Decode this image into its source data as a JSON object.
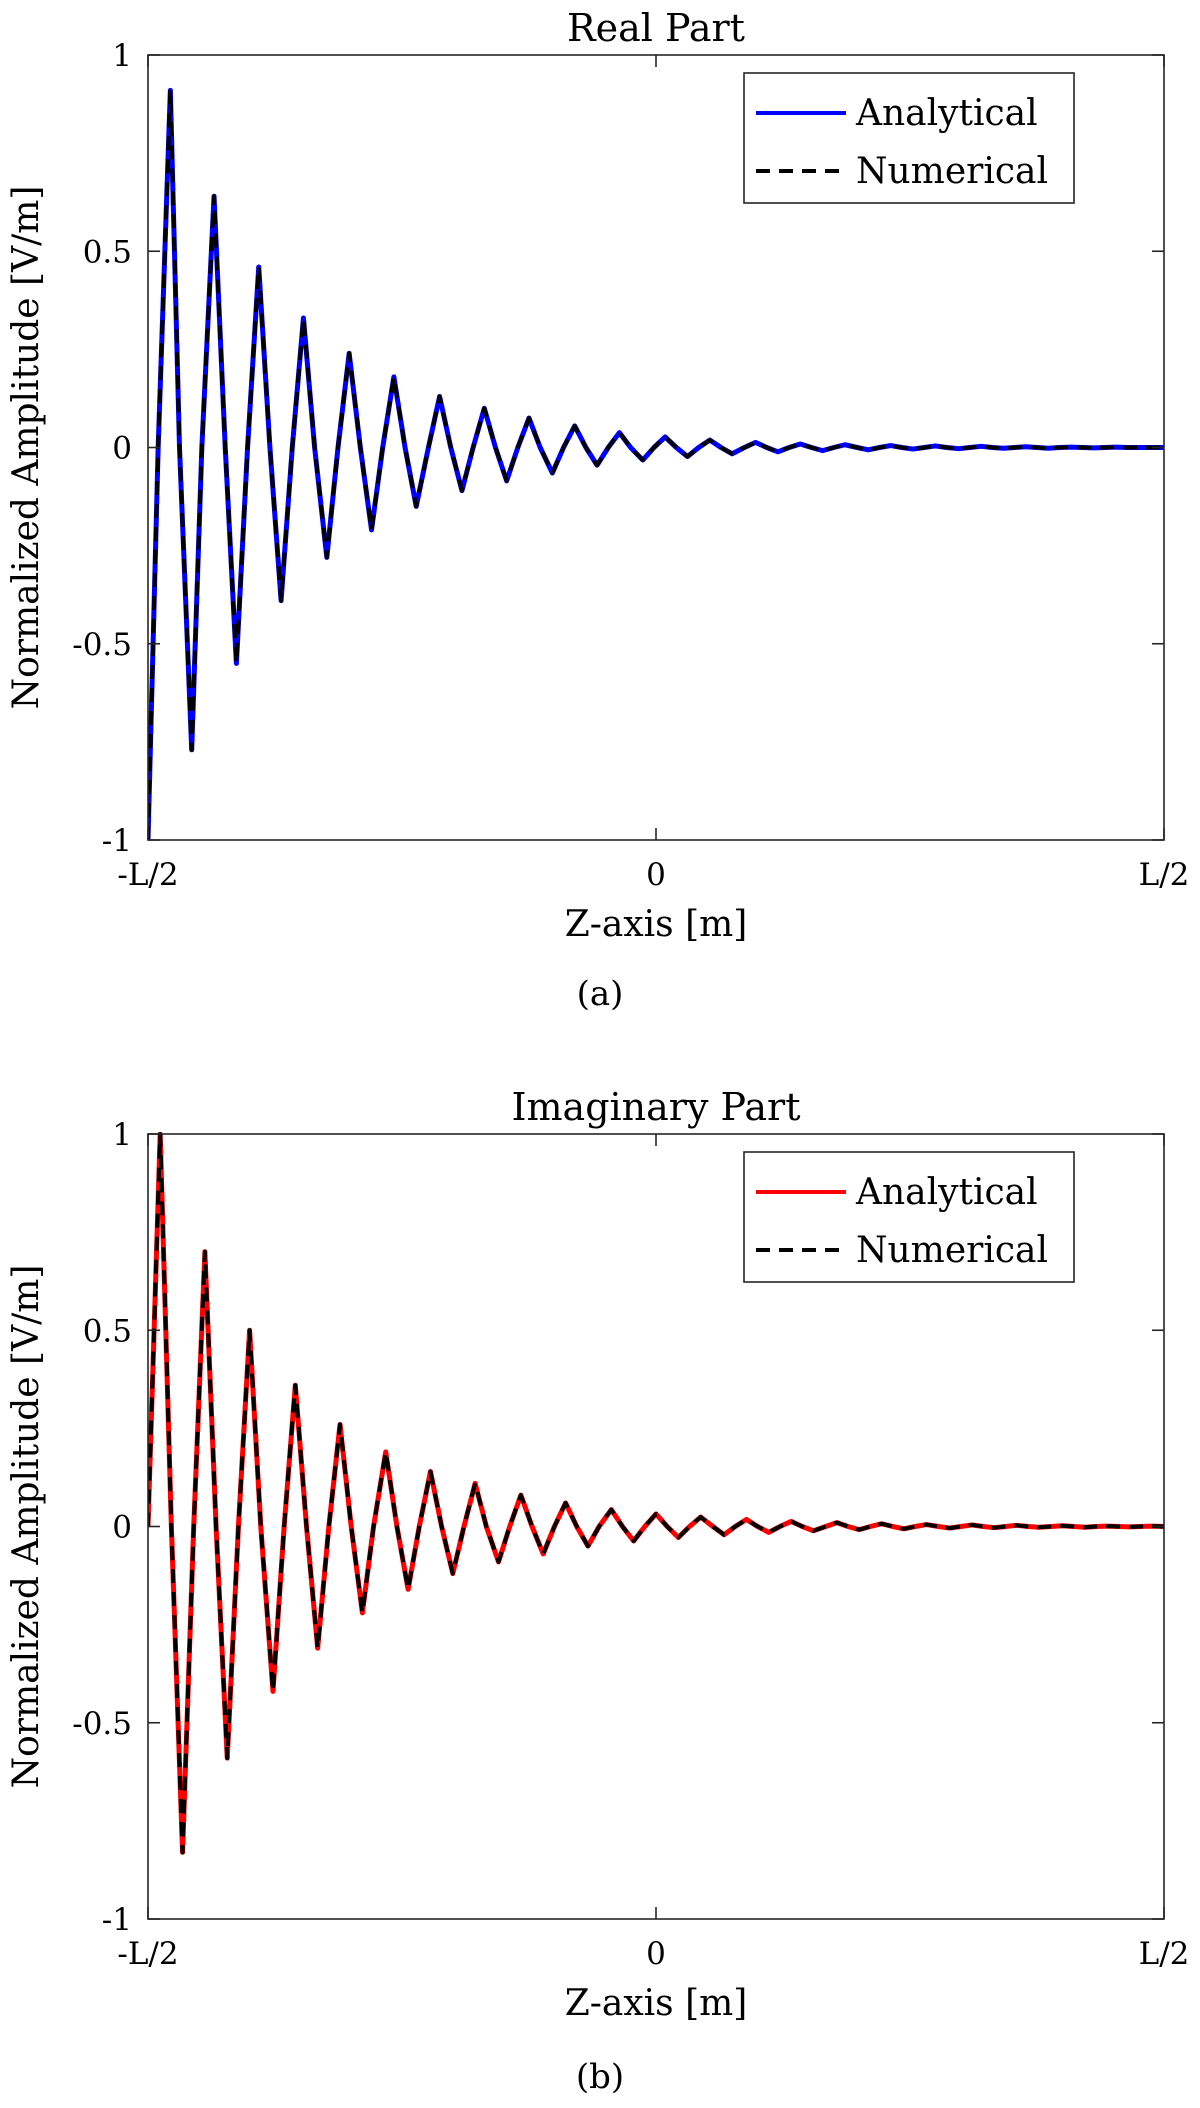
{
  "figure": {
    "panels": [
      {
        "caption": "(a)"
      },
      {
        "caption": "(b)"
      }
    ]
  },
  "chart_data": [
    {
      "type": "line",
      "title": "Real Part",
      "xlabel": "Z-axis [m]",
      "ylabel": "Normalized Amplitude [V/m]",
      "xlim": [
        -0.5,
        0.5
      ],
      "ylim": [
        -1,
        1
      ],
      "x_ticks": [
        -0.5,
        0,
        0.5
      ],
      "x_tick_labels": [
        "-L/2",
        "0",
        "L/2"
      ],
      "y_ticks": [
        1,
        0.5,
        0,
        -0.5,
        -1
      ],
      "y_tick_labels": [
        "1",
        "0.5",
        "0",
        "-0.5",
        "-1"
      ],
      "grid": false,
      "legend_position": "top-right",
      "colors": {
        "Analytical": "#0000ff",
        "Numerical": "#000000"
      },
      "series": [
        {
          "name": "Analytical",
          "style": "solid",
          "x": [
            -0.5,
            -0.49,
            -0.478,
            -0.469,
            -0.457,
            -0.447,
            -0.435,
            -0.424,
            -0.413,
            -0.402,
            -0.391,
            -0.38,
            -0.369,
            -0.358,
            -0.347,
            -0.336,
            -0.324,
            -0.313,
            -0.302,
            -0.291,
            -0.28,
            -0.269,
            -0.258,
            -0.247,
            -0.236,
            -0.224,
            -0.213,
            -0.202,
            -0.191,
            -0.18,
            -0.169,
            -0.158,
            -0.147,
            -0.136,
            -0.125,
            -0.114,
            -0.102,
            -0.091,
            -0.08,
            -0.069,
            -0.058,
            -0.047,
            -0.036,
            -0.025,
            -0.013,
            -0.002,
            0.009,
            0.02,
            0.031,
            0.042,
            0.053,
            0.064,
            0.075,
            0.087,
            0.098,
            0.109,
            0.12,
            0.131,
            0.142,
            0.153,
            0.164,
            0.175,
            0.186,
            0.198,
            0.209,
            0.22,
            0.231,
            0.242,
            0.253,
            0.264,
            0.275,
            0.286,
            0.298,
            0.309,
            0.32,
            0.331,
            0.342,
            0.353,
            0.364,
            0.375,
            0.386,
            0.397,
            0.409,
            0.42,
            0.431,
            0.442,
            0.453,
            0.464,
            0.475,
            0.486,
            0.5
          ],
          "y": [
            -1.0,
            0.0,
            0.91,
            0.0,
            -0.77,
            0.0,
            0.64,
            0.0,
            -0.55,
            0.0,
            0.46,
            0.0,
            -0.39,
            0.0,
            0.33,
            0.0,
            -0.28,
            0.0,
            0.24,
            0.0,
            -0.21,
            0.0,
            0.18,
            0.0,
            -0.15,
            0.0,
            0.13,
            0.0,
            -0.11,
            0.0,
            0.1,
            0.0,
            -0.085,
            0.0,
            0.075,
            0.0,
            -0.065,
            0.0,
            0.055,
            0.0,
            -0.045,
            0.0,
            0.038,
            0.0,
            -0.032,
            0.0,
            0.027,
            0.0,
            -0.023,
            0.0,
            0.019,
            0.0,
            -0.016,
            0.0,
            0.013,
            0.0,
            -0.011,
            0.0,
            0.009,
            0.0,
            -0.008,
            0.0,
            0.007,
            0.0,
            -0.006,
            0.0,
            0.005,
            0.0,
            -0.004,
            0.0,
            0.004,
            0.0,
            -0.003,
            0.0,
            0.003,
            0.0,
            -0.002,
            0.0,
            0.002,
            0.0,
            -0.002,
            0.0,
            0.001,
            0.0,
            -0.001,
            0.0,
            0.001,
            0.0,
            0.0,
            0.0,
            0.0
          ]
        },
        {
          "name": "Numerical",
          "style": "dashed",
          "x": [
            -0.5,
            -0.49,
            -0.478,
            -0.469,
            -0.457,
            -0.447,
            -0.435,
            -0.424,
            -0.413,
            -0.402,
            -0.391,
            -0.38,
            -0.369,
            -0.358,
            -0.347,
            -0.336,
            -0.324,
            -0.313,
            -0.302,
            -0.291,
            -0.28,
            -0.269,
            -0.258,
            -0.247,
            -0.236,
            -0.224,
            -0.213,
            -0.202,
            -0.191,
            -0.18,
            -0.169,
            -0.158,
            -0.147,
            -0.136,
            -0.125,
            -0.114,
            -0.102,
            -0.091,
            -0.08,
            -0.069,
            -0.058,
            -0.047,
            -0.036,
            -0.025,
            -0.013,
            -0.002,
            0.009,
            0.02,
            0.031,
            0.042,
            0.053,
            0.064,
            0.075,
            0.087,
            0.098,
            0.109,
            0.12,
            0.131,
            0.142,
            0.153,
            0.164,
            0.175,
            0.186,
            0.198,
            0.209,
            0.22,
            0.231,
            0.242,
            0.253,
            0.264,
            0.275,
            0.286,
            0.298,
            0.309,
            0.32,
            0.331,
            0.342,
            0.353,
            0.364,
            0.375,
            0.386,
            0.397,
            0.409,
            0.42,
            0.431,
            0.442,
            0.453,
            0.464,
            0.475,
            0.486,
            0.5
          ],
          "y": [
            -1.0,
            0.0,
            0.91,
            0.0,
            -0.77,
            0.0,
            0.64,
            0.0,
            -0.55,
            0.0,
            0.46,
            0.0,
            -0.39,
            0.0,
            0.33,
            0.0,
            -0.28,
            0.0,
            0.24,
            0.0,
            -0.21,
            0.0,
            0.18,
            0.0,
            -0.15,
            0.0,
            0.13,
            0.0,
            -0.11,
            0.0,
            0.1,
            0.0,
            -0.085,
            0.0,
            0.075,
            0.0,
            -0.065,
            0.0,
            0.055,
            0.0,
            -0.045,
            0.0,
            0.038,
            0.0,
            -0.032,
            0.0,
            0.027,
            0.0,
            -0.023,
            0.0,
            0.019,
            0.0,
            -0.016,
            0.0,
            0.013,
            0.0,
            -0.011,
            0.0,
            0.009,
            0.0,
            -0.008,
            0.0,
            0.007,
            0.0,
            -0.006,
            0.0,
            0.005,
            0.0,
            -0.004,
            0.0,
            0.004,
            0.0,
            -0.003,
            0.0,
            0.003,
            0.0,
            -0.002,
            0.0,
            0.002,
            0.0,
            -0.002,
            0.0,
            0.001,
            0.0,
            -0.001,
            0.0,
            0.001,
            0.0,
            0.0,
            0.0,
            0.0
          ]
        }
      ]
    },
    {
      "type": "line",
      "title": "Imaginary Part",
      "xlabel": "Z-axis [m]",
      "ylabel": "Normalized Amplitude [V/m]",
      "xlim": [
        -0.5,
        0.5
      ],
      "ylim": [
        -1,
        1
      ],
      "x_ticks": [
        -0.5,
        0,
        0.5
      ],
      "x_tick_labels": [
        "-L/2",
        "0",
        "L/2"
      ],
      "y_ticks": [
        1,
        0.5,
        0,
        -0.5,
        -1
      ],
      "y_tick_labels": [
        "1",
        "0.5",
        "0",
        "-0.5",
        "-1"
      ],
      "grid": false,
      "legend_position": "top-right",
      "colors": {
        "Analytical": "#ff0000",
        "Numerical": "#000000"
      },
      "series": [
        {
          "name": "Analytical",
          "style": "solid",
          "x": [
            -0.5,
            -0.488,
            -0.477,
            -0.466,
            -0.455,
            -0.444,
            -0.433,
            -0.422,
            -0.411,
            -0.4,
            -0.389,
            -0.377,
            -0.366,
            -0.355,
            -0.344,
            -0.333,
            -0.322,
            -0.311,
            -0.3,
            -0.289,
            -0.278,
            -0.266,
            -0.255,
            -0.244,
            -0.233,
            -0.222,
            -0.211,
            -0.2,
            -0.189,
            -0.178,
            -0.167,
            -0.155,
            -0.144,
            -0.133,
            -0.122,
            -0.111,
            -0.1,
            -0.089,
            -0.078,
            -0.067,
            -0.056,
            -0.044,
            -0.033,
            -0.022,
            -0.011,
            0.0,
            0.011,
            0.022,
            0.033,
            0.044,
            0.056,
            0.067,
            0.078,
            0.089,
            0.1,
            0.111,
            0.122,
            0.133,
            0.144,
            0.155,
            0.167,
            0.178,
            0.189,
            0.2,
            0.211,
            0.222,
            0.233,
            0.244,
            0.255,
            0.266,
            0.278,
            0.289,
            0.3,
            0.311,
            0.322,
            0.333,
            0.344,
            0.355,
            0.366,
            0.377,
            0.389,
            0.4,
            0.411,
            0.422,
            0.433,
            0.444,
            0.455,
            0.466,
            0.477,
            0.488,
            0.5
          ],
          "y": [
            0.0,
            1.0,
            0.0,
            -0.83,
            0.0,
            0.7,
            0.0,
            -0.59,
            0.0,
            0.5,
            0.0,
            -0.42,
            0.0,
            0.36,
            0.0,
            -0.31,
            0.0,
            0.26,
            0.0,
            -0.22,
            0.0,
            0.19,
            0.0,
            -0.16,
            0.0,
            0.14,
            0.0,
            -0.12,
            0.0,
            0.11,
            0.0,
            -0.09,
            0.0,
            0.08,
            0.0,
            -0.07,
            0.0,
            0.06,
            0.0,
            -0.05,
            0.0,
            0.043,
            0.0,
            -0.037,
            0.0,
            0.032,
            0.0,
            -0.028,
            0.0,
            0.024,
            0.0,
            -0.021,
            0.0,
            0.018,
            0.0,
            -0.015,
            0.0,
            0.013,
            0.0,
            -0.011,
            0.0,
            0.01,
            0.0,
            -0.008,
            0.0,
            0.007,
            0.0,
            -0.006,
            0.0,
            0.005,
            0.0,
            -0.004,
            0.0,
            0.004,
            0.0,
            -0.003,
            0.0,
            0.003,
            0.0,
            -0.002,
            0.0,
            0.002,
            0.0,
            -0.002,
            0.0,
            0.001,
            0.0,
            -0.001,
            0.0,
            0.001,
            0.0
          ]
        },
        {
          "name": "Numerical",
          "style": "dashed",
          "x": [
            -0.5,
            -0.488,
            -0.477,
            -0.466,
            -0.455,
            -0.444,
            -0.433,
            -0.422,
            -0.411,
            -0.4,
            -0.389,
            -0.377,
            -0.366,
            -0.355,
            -0.344,
            -0.333,
            -0.322,
            -0.311,
            -0.3,
            -0.289,
            -0.278,
            -0.266,
            -0.255,
            -0.244,
            -0.233,
            -0.222,
            -0.211,
            -0.2,
            -0.189,
            -0.178,
            -0.167,
            -0.155,
            -0.144,
            -0.133,
            -0.122,
            -0.111,
            -0.1,
            -0.089,
            -0.078,
            -0.067,
            -0.056,
            -0.044,
            -0.033,
            -0.022,
            -0.011,
            0.0,
            0.011,
            0.022,
            0.033,
            0.044,
            0.056,
            0.067,
            0.078,
            0.089,
            0.1,
            0.111,
            0.122,
            0.133,
            0.144,
            0.155,
            0.167,
            0.178,
            0.189,
            0.2,
            0.211,
            0.222,
            0.233,
            0.244,
            0.255,
            0.266,
            0.278,
            0.289,
            0.3,
            0.311,
            0.322,
            0.333,
            0.344,
            0.355,
            0.366,
            0.377,
            0.389,
            0.4,
            0.411,
            0.422,
            0.433,
            0.444,
            0.455,
            0.466,
            0.477,
            0.488,
            0.5
          ],
          "y": [
            0.0,
            1.0,
            0.0,
            -0.83,
            0.0,
            0.7,
            0.0,
            -0.59,
            0.0,
            0.5,
            0.0,
            -0.42,
            0.0,
            0.36,
            0.0,
            -0.31,
            0.0,
            0.26,
            0.0,
            -0.22,
            0.0,
            0.19,
            0.0,
            -0.16,
            0.0,
            0.14,
            0.0,
            -0.12,
            0.0,
            0.11,
            0.0,
            -0.09,
            0.0,
            0.08,
            0.0,
            -0.07,
            0.0,
            0.06,
            0.0,
            -0.05,
            0.0,
            0.043,
            0.0,
            -0.037,
            0.0,
            0.032,
            0.0,
            -0.028,
            0.0,
            0.024,
            0.0,
            -0.021,
            0.0,
            0.018,
            0.0,
            -0.015,
            0.0,
            0.013,
            0.0,
            -0.011,
            0.0,
            0.01,
            0.0,
            -0.008,
            0.0,
            0.007,
            0.0,
            -0.006,
            0.0,
            0.005,
            0.0,
            -0.004,
            0.0,
            0.004,
            0.0,
            -0.003,
            0.0,
            0.003,
            0.0,
            -0.002,
            0.0,
            0.002,
            0.0,
            -0.002,
            0.0,
            0.001,
            0.0,
            -0.001,
            0.0,
            0.001,
            0.0
          ]
        }
      ]
    }
  ]
}
